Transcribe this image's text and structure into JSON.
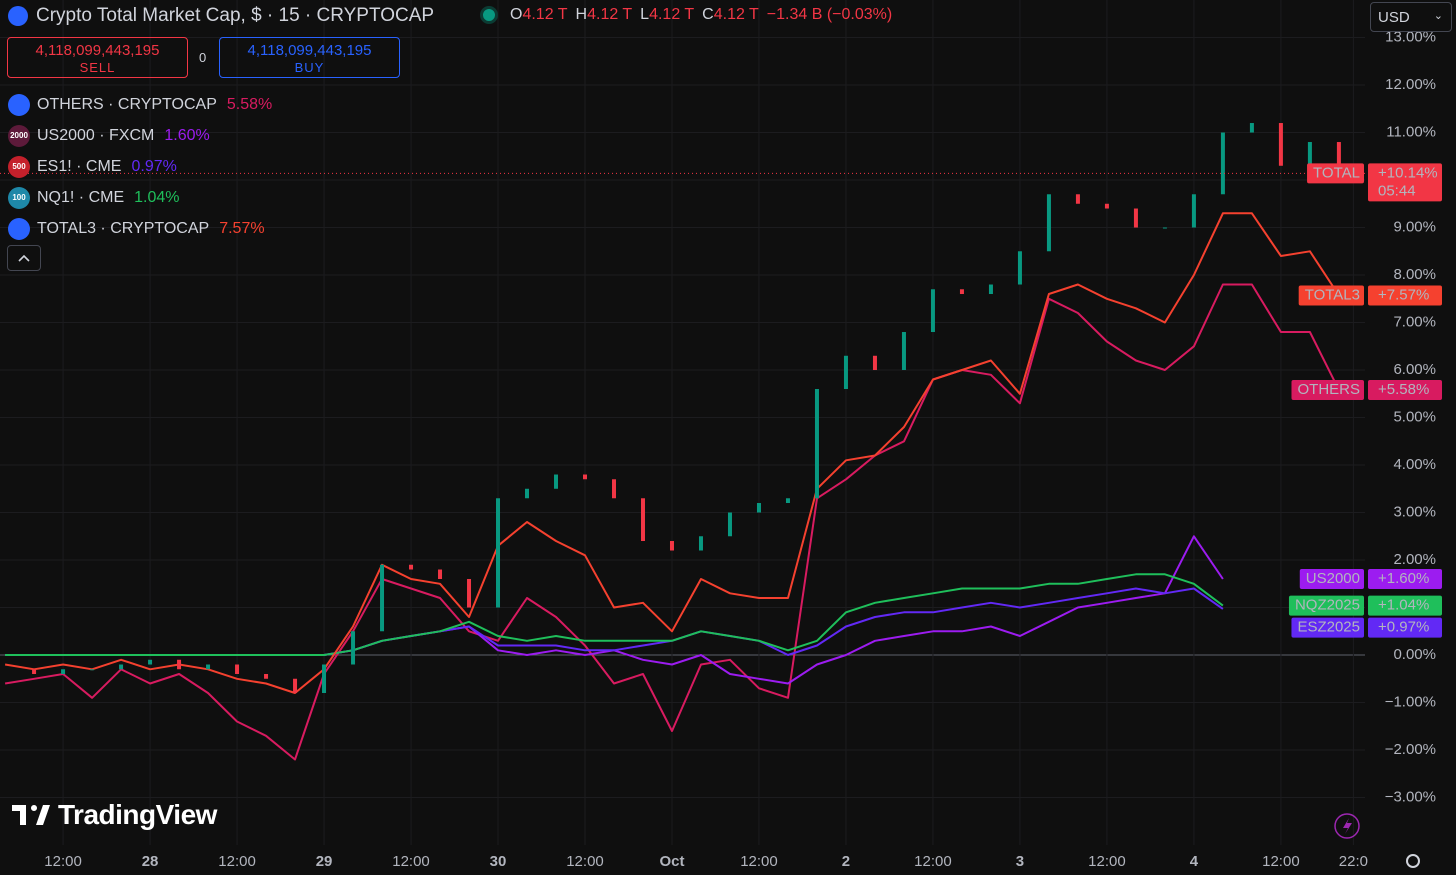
{
  "header": {
    "title": "Crypto Total Market Cap, $ · 15 · CRYPTOCAP",
    "ohlc": [
      {
        "key": "O",
        "value": "4.12 T"
      },
      {
        "key": "H",
        "value": "4.12 T"
      },
      {
        "key": "L",
        "value": "4.12 T"
      },
      {
        "key": "C",
        "value": "4.12 T"
      }
    ],
    "change": "−1.34 B (−0.03%)",
    "currency": "USD"
  },
  "trade": {
    "sell_price": "4,118,099,443,195",
    "sell": "SELL",
    "spread": "0",
    "buy_price": "4,118,099,443,195",
    "buy": "BUY"
  },
  "logo": "TradingView",
  "chart_data": {
    "type": "line",
    "x": [
      4,
      8,
      12,
      16,
      20,
      24,
      28,
      32,
      36,
      40,
      44,
      48,
      52,
      56,
      60,
      64,
      68,
      72,
      76,
      80,
      84,
      88,
      92,
      96,
      100,
      104,
      108,
      112,
      116,
      120,
      124,
      128,
      132,
      136,
      140,
      144,
      148,
      152,
      156,
      160,
      164,
      168,
      172,
      176,
      180,
      184,
      188
    ],
    "xlim": [
      3.3,
      191.6
    ],
    "xticks": [
      {
        "value": 12,
        "label": "12:00"
      },
      {
        "value": 24,
        "label": "28"
      },
      {
        "value": 36,
        "label": "12:00"
      },
      {
        "value": 48,
        "label": "29"
      },
      {
        "value": 60,
        "label": "12:00"
      },
      {
        "value": 72,
        "label": "30"
      },
      {
        "value": 84,
        "label": "12:00"
      },
      {
        "value": 96,
        "label": "Oct"
      },
      {
        "value": 108,
        "label": "12:00"
      },
      {
        "value": 120,
        "label": "2"
      },
      {
        "value": 132,
        "label": "12:00"
      },
      {
        "value": 144,
        "label": "3"
      },
      {
        "value": 156,
        "label": "12:00"
      },
      {
        "value": 168,
        "label": "4"
      },
      {
        "value": 180,
        "label": "12:00"
      },
      {
        "value": 190,
        "label": "22:0"
      }
    ],
    "ylim": [
      -4,
      13.79
    ],
    "yticks": [
      {
        "value": -3,
        "label": "−3.00%"
      },
      {
        "value": -2,
        "label": "−2.00%"
      },
      {
        "value": -1,
        "label": "−1.00%"
      },
      {
        "value": 0,
        "label": "0.00%"
      },
      {
        "value": 1,
        "label": "1.00%"
      },
      {
        "value": 2,
        "label": "2.00%"
      },
      {
        "value": 3,
        "label": "3.00%"
      },
      {
        "value": 4,
        "label": "4.00%"
      },
      {
        "value": 5,
        "label": "5.00%"
      },
      {
        "value": 6,
        "label": "6.00%"
      },
      {
        "value": 7,
        "label": "7.00%"
      },
      {
        "value": 8,
        "label": "8.00%"
      },
      {
        "value": 9,
        "label": "9.00%"
      },
      {
        "value": 10,
        "label": "10.00%"
      },
      {
        "value": 11,
        "label": "11.00%"
      },
      {
        "value": 12,
        "label": "12.00%"
      },
      {
        "value": 13,
        "label": "13.00%"
      }
    ],
    "grid": true,
    "series": [
      {
        "name": "TOTAL",
        "style": "candles",
        "up_color": "#089981",
        "down_color": "#f23645",
        "color": "#f23645",
        "last_value": 10.14,
        "last_label": "+10.14%",
        "countdown": "05:44",
        "values": [
          -0.3,
          -0.4,
          -0.3,
          -0.3,
          -0.2,
          -0.1,
          -0.3,
          -0.2,
          -0.4,
          -0.5,
          -0.8,
          -0.2,
          0.5,
          1.9,
          1.8,
          1.6,
          1.0,
          3.3,
          3.5,
          3.8,
          3.7,
          3.3,
          2.4,
          2.2,
          2.5,
          3.0,
          3.2,
          3.3,
          5.6,
          6.3,
          6.0,
          6.8,
          7.7,
          7.6,
          7.8,
          8.5,
          9.7,
          9.5,
          9.4,
          9.0,
          9.0,
          9.7,
          11.0,
          11.2,
          10.3,
          10.8,
          10.14
        ]
      },
      {
        "name": "OTHERS",
        "legend": "OTHERS · CRYPTOCAP",
        "legend_value": "5.58%",
        "icon_color": "#2962ff",
        "color": "#d81b60",
        "last_value": 5.58,
        "last_label": "+5.58%",
        "values": [
          -0.6,
          -0.5,
          -0.4,
          -0.9,
          -0.3,
          -0.6,
          -0.4,
          -0.8,
          -1.4,
          -1.7,
          -2.2,
          -0.4,
          0.5,
          1.6,
          1.4,
          1.2,
          0.5,
          0.3,
          1.2,
          0.8,
          0.2,
          -0.6,
          -0.4,
          -1.6,
          -0.2,
          -0.1,
          -0.7,
          -0.9,
          3.3,
          3.7,
          4.2,
          4.5,
          5.8,
          6.0,
          5.9,
          5.3,
          7.5,
          7.2,
          6.6,
          6.2,
          6.0,
          6.5,
          7.8,
          7.8,
          6.8,
          6.8,
          5.58
        ]
      },
      {
        "name": "US2000",
        "legend": "US2000 · FXCM",
        "legend_value": "1.60%",
        "icon_color": "#5d1a3a",
        "icon_text": "2000",
        "color": "#9c1cf0",
        "last_value": 1.6,
        "last_label": "+1.60%",
        "values": [
          0,
          0,
          0,
          0,
          0,
          0,
          0,
          0,
          0,
          0,
          0,
          0,
          0.1,
          0.3,
          0.4,
          0.5,
          0.6,
          0.1,
          0.0,
          0.1,
          0.0,
          0.1,
          -0.1,
          -0.2,
          0.0,
          -0.4,
          -0.5,
          -0.6,
          -0.2,
          0.0,
          0.3,
          0.4,
          0.5,
          0.5,
          0.6,
          0.4,
          0.7,
          1.0,
          1.1,
          1.2,
          1.3,
          2.5,
          1.6,
          null,
          null,
          null,
          null
        ]
      },
      {
        "name": "ESZ2025",
        "legend": "ES1! · CME",
        "legend_value": "0.97%",
        "icon_color": "#c4202b",
        "icon_text": "500",
        "color": "#6229f5",
        "last_value": 0.97,
        "last_label": "+0.97%",
        "values": [
          0,
          0,
          0,
          0,
          0,
          0,
          0,
          0,
          0,
          0,
          0,
          0,
          0.1,
          0.3,
          0.4,
          0.5,
          0.6,
          0.2,
          0.2,
          0.2,
          0.1,
          0.1,
          0.2,
          0.3,
          0.5,
          0.4,
          0.3,
          0.0,
          0.2,
          0.6,
          0.8,
          0.9,
          0.9,
          1.0,
          1.1,
          1.0,
          1.1,
          1.2,
          1.3,
          1.4,
          1.3,
          1.4,
          0.97,
          null,
          null,
          null,
          null
        ]
      },
      {
        "name": "NQZ2025",
        "legend": "NQ1! · CME",
        "legend_value": "1.04%",
        "icon_color": "#1e88a8",
        "icon_text": "100",
        "color": "#1fbf5b",
        "last_value": 1.04,
        "last_label": "+1.04%",
        "values": [
          0,
          0,
          0,
          0,
          0,
          0,
          0,
          0,
          0,
          0,
          0,
          0,
          0.1,
          0.3,
          0.4,
          0.5,
          0.7,
          0.4,
          0.3,
          0.4,
          0.3,
          0.3,
          0.3,
          0.3,
          0.5,
          0.4,
          0.3,
          0.1,
          0.3,
          0.9,
          1.1,
          1.2,
          1.3,
          1.4,
          1.4,
          1.4,
          1.5,
          1.5,
          1.6,
          1.7,
          1.7,
          1.5,
          1.04,
          null,
          null,
          null,
          null
        ]
      },
      {
        "name": "TOTAL3",
        "legend": "TOTAL3 · CRYPTOCAP",
        "legend_value": "7.57%",
        "icon_color": "#2962ff",
        "color": "#f5412f",
        "last_value": 7.57,
        "last_label": "+7.57%",
        "values": [
          -0.2,
          -0.3,
          -0.2,
          -0.3,
          -0.1,
          -0.3,
          -0.2,
          -0.3,
          -0.5,
          -0.6,
          -0.8,
          -0.3,
          0.6,
          1.9,
          1.6,
          1.5,
          0.8,
          2.3,
          2.8,
          2.4,
          2.1,
          1.0,
          1.1,
          0.5,
          1.6,
          1.3,
          1.2,
          1.2,
          3.5,
          4.1,
          4.2,
          4.8,
          5.8,
          6.0,
          6.2,
          5.5,
          7.6,
          7.8,
          7.5,
          7.3,
          7.0,
          8.0,
          9.3,
          9.3,
          8.4,
          8.5,
          7.57
        ]
      }
    ]
  }
}
